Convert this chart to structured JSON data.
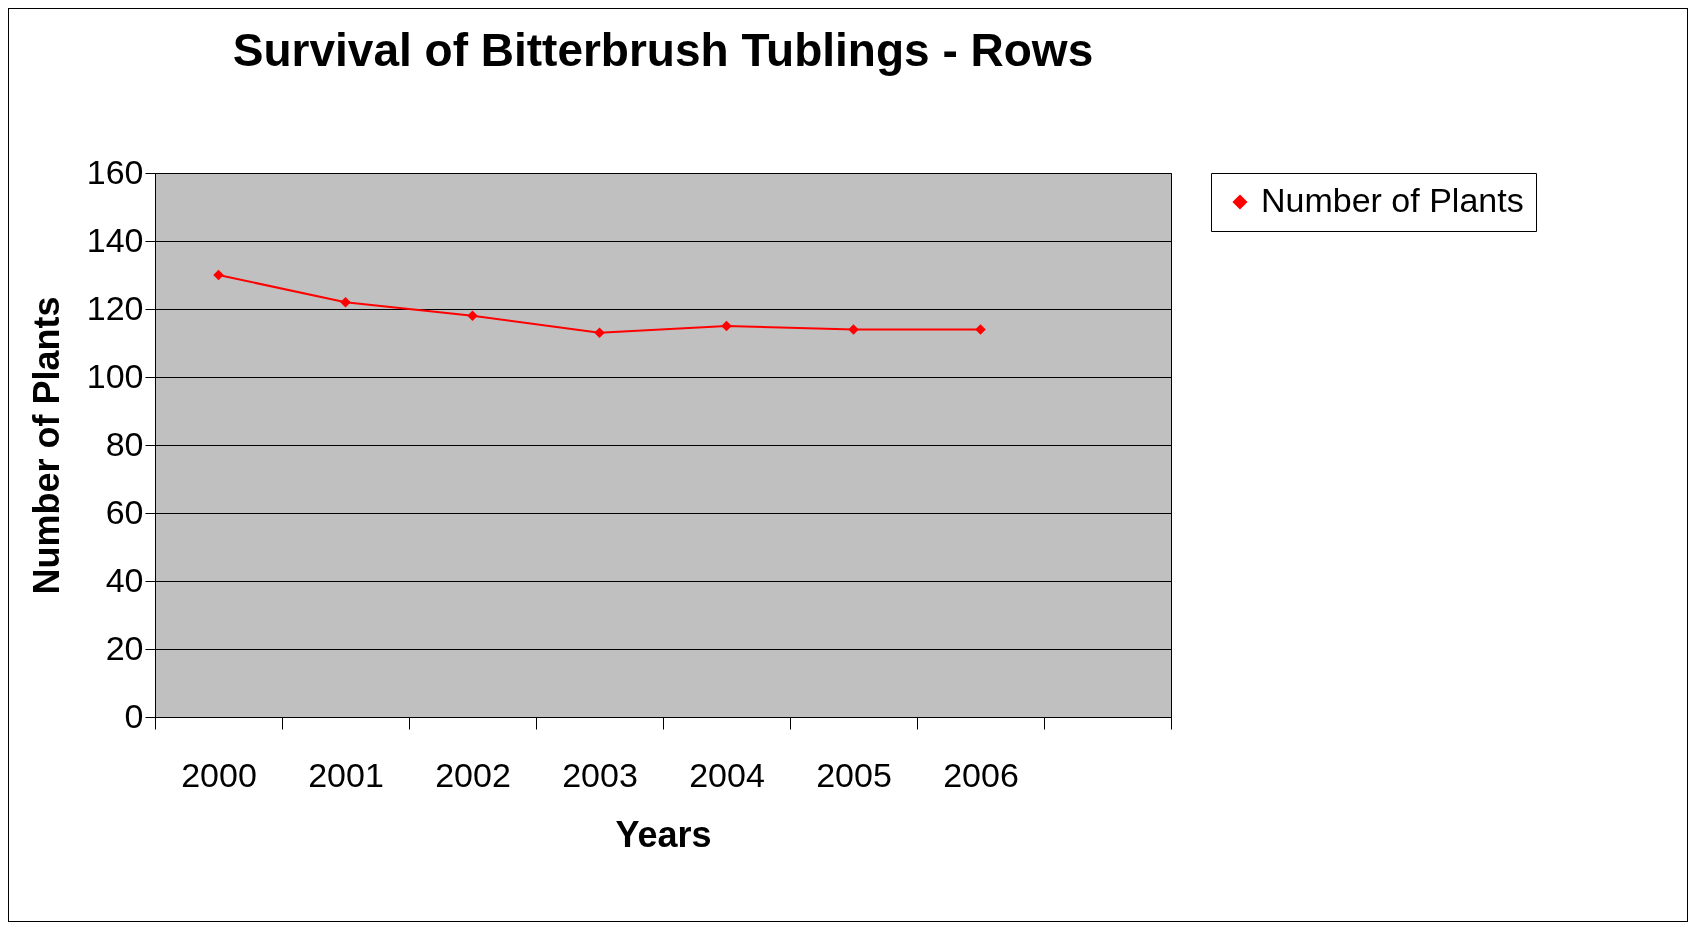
{
  "chart_data": {
    "type": "line",
    "title": "Survival of Bitterbrush Tublings - Rows",
    "xlabel": "Years",
    "ylabel": "Number of Plants",
    "categories": [
      "2000",
      "2001",
      "2002",
      "2003",
      "2004",
      "2005",
      "2006",
      null
    ],
    "series": [
      {
        "name": "Number of Plants",
        "color": "#ff0000",
        "values": [
          130,
          122,
          118,
          113,
          115,
          114,
          114,
          null
        ]
      }
    ],
    "ylim": [
      0,
      160
    ],
    "yticks": [
      0,
      20,
      40,
      60,
      80,
      100,
      120,
      140,
      160
    ],
    "grid": "y",
    "legend": "right",
    "marker": "diamond",
    "line_style": "solid"
  }
}
